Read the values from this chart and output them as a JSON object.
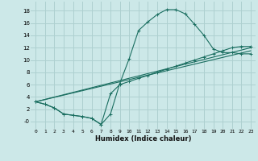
{
  "xlabel": "Humidex (Indice chaleur)",
  "background_color": "#cce8e8",
  "grid_color": "#aed0d0",
  "line_color": "#1a6e60",
  "xlim": [
    -0.5,
    23.5
  ],
  "ylim": [
    -1.2,
    19.5
  ],
  "xticks": [
    0,
    1,
    2,
    3,
    4,
    5,
    6,
    7,
    8,
    9,
    10,
    11,
    12,
    13,
    14,
    15,
    16,
    17,
    18,
    19,
    20,
    21,
    22,
    23
  ],
  "yticks": [
    0,
    2,
    4,
    6,
    8,
    10,
    12,
    14,
    16,
    18
  ],
  "ytick_labels": [
    "-0",
    "2",
    "4",
    "6",
    "8",
    "10",
    "12",
    "14",
    "16",
    "18"
  ],
  "line1_x": [
    0,
    1,
    2,
    3,
    4,
    5,
    6,
    7,
    8,
    9,
    10,
    11,
    12,
    13,
    14,
    15,
    16,
    17,
    18,
    19,
    20,
    21,
    22,
    23
  ],
  "line1_y": [
    3.2,
    2.8,
    2.2,
    1.2,
    1.0,
    0.8,
    0.5,
    -0.5,
    1.2,
    6.2,
    10.2,
    14.8,
    16.2,
    17.4,
    18.2,
    18.2,
    17.5,
    15.8,
    14.0,
    11.8,
    11.2,
    11.2,
    11.0,
    11.0
  ],
  "line2_x": [
    0,
    1,
    2,
    3,
    4,
    5,
    6,
    7,
    8,
    9,
    10,
    11,
    12,
    13,
    14,
    15,
    16,
    17,
    18,
    19,
    20,
    21,
    22,
    23
  ],
  "line2_y": [
    3.2,
    2.8,
    2.2,
    1.2,
    1.0,
    0.8,
    0.5,
    -0.5,
    4.5,
    6.0,
    6.5,
    7.0,
    7.5,
    8.0,
    8.5,
    9.0,
    9.5,
    10.0,
    10.5,
    11.0,
    11.5,
    12.0,
    12.2,
    12.2
  ],
  "line3_x": [
    0,
    23
  ],
  "line3_y": [
    3.2,
    11.5
  ],
  "line4_x": [
    0,
    23
  ],
  "line4_y": [
    3.2,
    12.0
  ]
}
